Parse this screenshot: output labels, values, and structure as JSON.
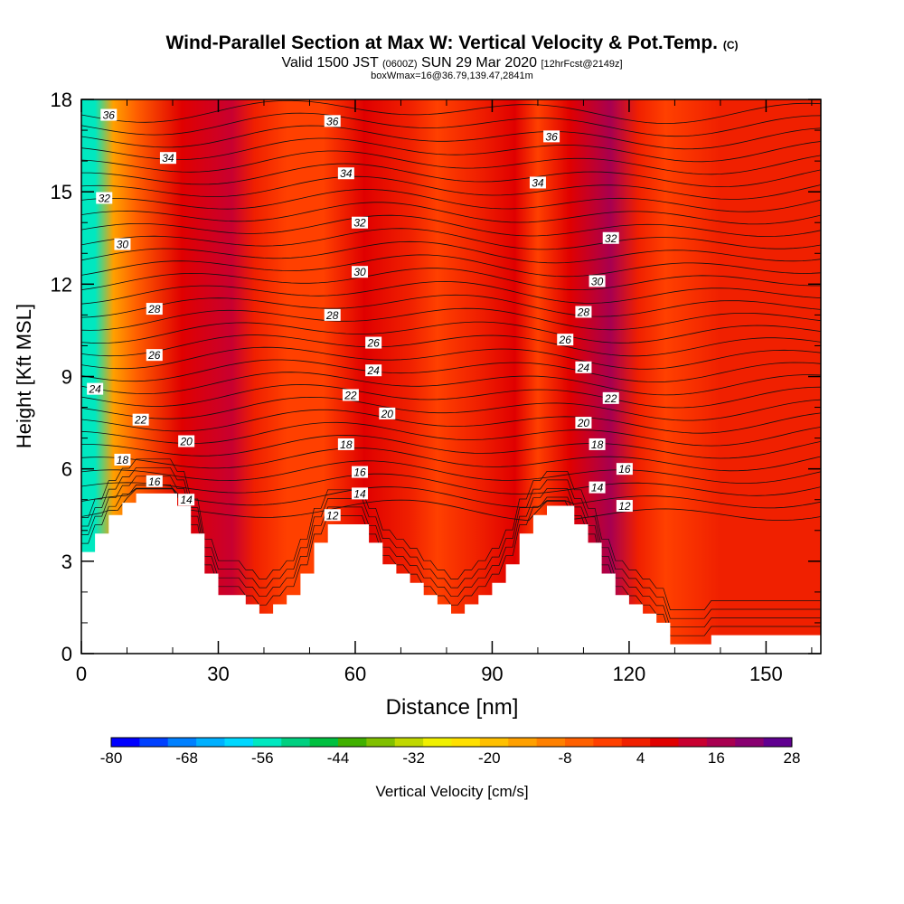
{
  "title": {
    "main": "Wind-Parallel Section at Max W: Vertical Velocity & Pot.Temp.",
    "copyright": "(C)",
    "valid_prefix": "Valid 1500 JST",
    "valid_utc": "(0600Z)",
    "valid_date": "SUN 29 Mar 2020",
    "forecast": "[12hrFcst@2149z]",
    "boxw": "boxWmax=16@36.79,139.47,2841m"
  },
  "chart_data": {
    "type": "heatmap",
    "xlabel": "Distance [nm]",
    "ylabel": "Height [Kft MSL]",
    "xlim": [
      0,
      162
    ],
    "ylim": [
      0,
      18
    ],
    "xticks": [
      0,
      30,
      60,
      90,
      120,
      150
    ],
    "yticks": [
      0,
      3,
      6,
      9,
      12,
      15,
      18
    ],
    "colorbar": {
      "label": "Vertical Velocity [cm/s]",
      "ticks": [
        -80,
        -68,
        -56,
        -44,
        -32,
        -20,
        -8,
        4,
        16,
        28
      ],
      "range": [
        -80,
        28
      ],
      "colors": [
        "#0000ff",
        "#0040ff",
        "#0080ff",
        "#00b0ff",
        "#00d8ff",
        "#00e8c0",
        "#00d080",
        "#00c040",
        "#40b000",
        "#80c000",
        "#c0d800",
        "#f0f000",
        "#ffe000",
        "#ffc000",
        "#ffa000",
        "#ff8000",
        "#ff6000",
        "#ff4000",
        "#f02000",
        "#e00000",
        "#c80030",
        "#a80050",
        "#880070",
        "#600090"
      ]
    },
    "w_columns": [
      {
        "x": 3,
        "w": -55
      },
      {
        "x": 7,
        "w": -15
      },
      {
        "x": 12,
        "w": -6
      },
      {
        "x": 22,
        "w": 6
      },
      {
        "x": 33,
        "w": 10
      },
      {
        "x": 38,
        "w": 2
      },
      {
        "x": 45,
        "w": -3
      },
      {
        "x": 53,
        "w": 0
      },
      {
        "x": 62,
        "w": 7
      },
      {
        "x": 72,
        "w": 1
      },
      {
        "x": 78,
        "w": -3
      },
      {
        "x": 87,
        "w": 2
      },
      {
        "x": 95,
        "w": 9
      },
      {
        "x": 100,
        "w": 0
      },
      {
        "x": 107,
        "w": 6
      },
      {
        "x": 116,
        "w": 18
      },
      {
        "x": 122,
        "w": 3
      },
      {
        "x": 128,
        "w": -2
      },
      {
        "x": 140,
        "w": 3
      },
      {
        "x": 150,
        "w": 2
      },
      {
        "x": 158,
        "w": 3
      }
    ],
    "terrain": [
      [
        0,
        3.3
      ],
      [
        3,
        3.3
      ],
      [
        3,
        3.9
      ],
      [
        6,
        3.9
      ],
      [
        6,
        4.5
      ],
      [
        9,
        4.5
      ],
      [
        9,
        4.9
      ],
      [
        12,
        4.9
      ],
      [
        12,
        5.2
      ],
      [
        21,
        5.2
      ],
      [
        21,
        4.8
      ],
      [
        24,
        4.8
      ],
      [
        24,
        3.9
      ],
      [
        27,
        3.9
      ],
      [
        27,
        2.6
      ],
      [
        30,
        2.6
      ],
      [
        30,
        1.9
      ],
      [
        36,
        1.9
      ],
      [
        36,
        1.6
      ],
      [
        39,
        1.6
      ],
      [
        39,
        1.3
      ],
      [
        42,
        1.3
      ],
      [
        42,
        1.6
      ],
      [
        45,
        1.6
      ],
      [
        45,
        1.9
      ],
      [
        48,
        1.9
      ],
      [
        48,
        2.6
      ],
      [
        51,
        2.6
      ],
      [
        51,
        3.6
      ],
      [
        54,
        3.6
      ],
      [
        54,
        4.2
      ],
      [
        63,
        4.2
      ],
      [
        63,
        3.6
      ],
      [
        66,
        3.6
      ],
      [
        66,
        2.9
      ],
      [
        69,
        2.9
      ],
      [
        69,
        2.6
      ],
      [
        72,
        2.6
      ],
      [
        72,
        2.3
      ],
      [
        75,
        2.3
      ],
      [
        75,
        1.9
      ],
      [
        78,
        1.9
      ],
      [
        78,
        1.6
      ],
      [
        81,
        1.6
      ],
      [
        81,
        1.3
      ],
      [
        84,
        1.3
      ],
      [
        84,
        1.6
      ],
      [
        87,
        1.6
      ],
      [
        87,
        1.9
      ],
      [
        90,
        1.9
      ],
      [
        90,
        2.3
      ],
      [
        93,
        2.3
      ],
      [
        93,
        2.9
      ],
      [
        96,
        2.9
      ],
      [
        96,
        3.9
      ],
      [
        99,
        3.9
      ],
      [
        99,
        4.5
      ],
      [
        102,
        4.5
      ],
      [
        102,
        4.8
      ],
      [
        108,
        4.8
      ],
      [
        108,
        4.2
      ],
      [
        111,
        4.2
      ],
      [
        111,
        3.6
      ],
      [
        114,
        3.6
      ],
      [
        114,
        2.6
      ],
      [
        117,
        2.6
      ],
      [
        117,
        1.9
      ],
      [
        120,
        1.9
      ],
      [
        120,
        1.6
      ],
      [
        123,
        1.6
      ],
      [
        123,
        1.3
      ],
      [
        126,
        1.3
      ],
      [
        126,
        1.0
      ],
      [
        129,
        1.0
      ],
      [
        129,
        0.3
      ],
      [
        138,
        0.3
      ],
      [
        138,
        0.6
      ],
      [
        162,
        0.6
      ]
    ],
    "theta_labels": [
      {
        "v": "36",
        "x": 6,
        "y": 17.5
      },
      {
        "v": "34",
        "x": 19,
        "y": 16.1
      },
      {
        "v": "32",
        "x": 5,
        "y": 14.8
      },
      {
        "v": "30",
        "x": 9,
        "y": 13.3
      },
      {
        "v": "28",
        "x": 16,
        "y": 11.2
      },
      {
        "v": "26",
        "x": 16,
        "y": 9.7
      },
      {
        "v": "24",
        "x": 3,
        "y": 8.6
      },
      {
        "v": "22",
        "x": 13,
        "y": 7.6
      },
      {
        "v": "20",
        "x": 23,
        "y": 6.9
      },
      {
        "v": "18",
        "x": 9,
        "y": 6.3
      },
      {
        "v": "16",
        "x": 16,
        "y": 5.6
      },
      {
        "v": "14",
        "x": 23,
        "y": 5.0
      },
      {
        "v": "36",
        "x": 55,
        "y": 17.3
      },
      {
        "v": "34",
        "x": 58,
        "y": 15.6
      },
      {
        "v": "32",
        "x": 61,
        "y": 14.0
      },
      {
        "v": "30",
        "x": 61,
        "y": 12.4
      },
      {
        "v": "28",
        "x": 55,
        "y": 11.0
      },
      {
        "v": "26",
        "x": 64,
        "y": 10.1
      },
      {
        "v": "24",
        "x": 64,
        "y": 9.2
      },
      {
        "v": "22",
        "x": 59,
        "y": 8.4
      },
      {
        "v": "20",
        "x": 67,
        "y": 7.8
      },
      {
        "v": "18",
        "x": 58,
        "y": 6.8
      },
      {
        "v": "16",
        "x": 61,
        "y": 5.9
      },
      {
        "v": "14",
        "x": 61,
        "y": 5.2
      },
      {
        "v": "12",
        "x": 55,
        "y": 4.5
      },
      {
        "v": "36",
        "x": 103,
        "y": 16.8
      },
      {
        "v": "34",
        "x": 100,
        "y": 15.3
      },
      {
        "v": "32",
        "x": 116,
        "y": 13.5
      },
      {
        "v": "30",
        "x": 113,
        "y": 12.1
      },
      {
        "v": "28",
        "x": 110,
        "y": 11.1
      },
      {
        "v": "26",
        "x": 106,
        "y": 10.2
      },
      {
        "v": "24",
        "x": 110,
        "y": 9.3
      },
      {
        "v": "22",
        "x": 116,
        "y": 8.3
      },
      {
        "v": "20",
        "x": 110,
        "y": 7.5
      },
      {
        "v": "18",
        "x": 113,
        "y": 6.8
      },
      {
        "v": "16",
        "x": 119,
        "y": 6.0
      },
      {
        "v": "14",
        "x": 113,
        "y": 5.4
      },
      {
        "v": "12",
        "x": 119,
        "y": 4.8
      }
    ]
  }
}
